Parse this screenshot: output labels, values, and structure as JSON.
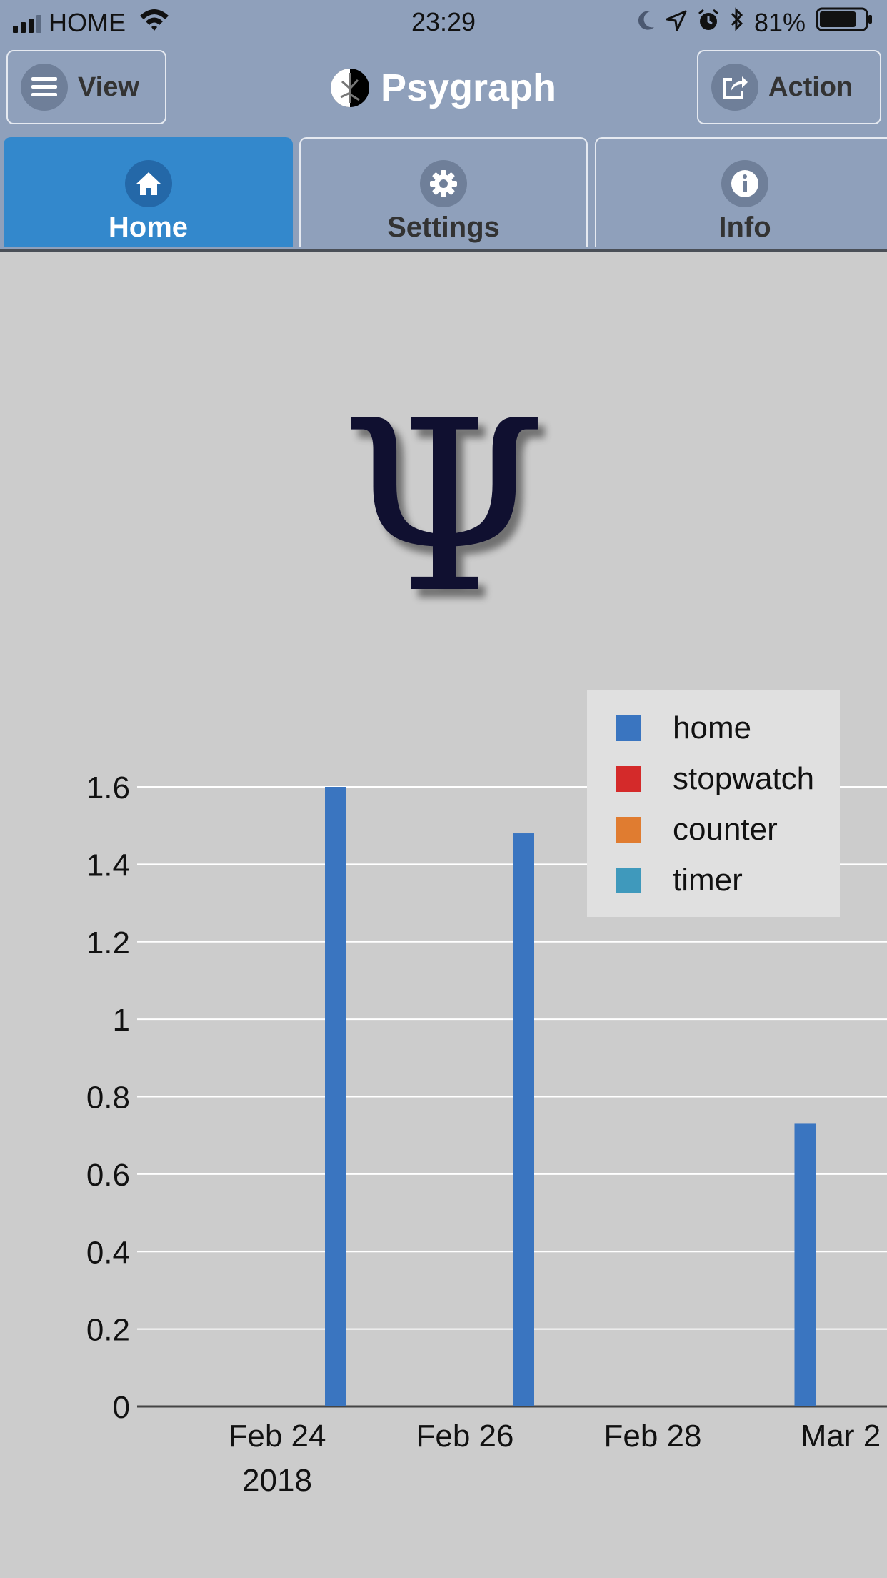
{
  "status_bar": {
    "carrier": "HOME",
    "time": "23:29",
    "battery": "81%",
    "battery_level": 0.81,
    "icons": [
      "signal-icon",
      "wifi-icon",
      "moon-icon",
      "location-icon",
      "alarm-icon",
      "bluetooth-icon",
      "battery-icon"
    ]
  },
  "header": {
    "view_label": "View",
    "view_icon": "menu-icon",
    "title": "Psygraph",
    "logo_icon": "psygraph-logo",
    "action_label": "Action",
    "action_icon": "share-icon"
  },
  "tabs": [
    {
      "label": "Home",
      "icon": "home-icon",
      "active": true
    },
    {
      "label": "Settings",
      "icon": "gear-icon",
      "active": false
    },
    {
      "label": "Info",
      "icon": "info-icon",
      "active": false
    }
  ],
  "logo_symbol": "Ψ",
  "colors": {
    "accent": "#3388cc",
    "bar_home": "#3a75c0",
    "stopwatch": "#d42a2a",
    "counter": "#e07c30",
    "timer": "#3f99bc",
    "header_bg": "#8fa0bb"
  },
  "chart_data": {
    "type": "bar",
    "title": "",
    "xlabel": "",
    "ylabel": "",
    "ylim": [
      0,
      1.6
    ],
    "yticks": [
      "0",
      "0.2",
      "0.4",
      "0.6",
      "0.8",
      "1",
      "1.2",
      "1.4",
      "1.6"
    ],
    "xticks": [
      {
        "date": "2018-02-24",
        "label": "Feb 24",
        "sub": "2018"
      },
      {
        "date": "2018-02-26",
        "label": "Feb 26",
        "sub": ""
      },
      {
        "date": "2018-02-28",
        "label": "Feb 28",
        "sub": ""
      },
      {
        "date": "2018-03-02",
        "label": "Mar 2",
        "sub": ""
      }
    ],
    "grid": true,
    "legend_position": "top-right",
    "series": [
      {
        "name": "home",
        "points": [
          {
            "date": "2018-02-24",
            "value": 1.6
          },
          {
            "date": "2018-02-26",
            "value": 1.48
          },
          {
            "date": "2018-03-01",
            "value": 0.73
          }
        ]
      },
      {
        "name": "stopwatch",
        "points": []
      },
      {
        "name": "counter",
        "points": []
      },
      {
        "name": "timer",
        "points": []
      }
    ]
  }
}
